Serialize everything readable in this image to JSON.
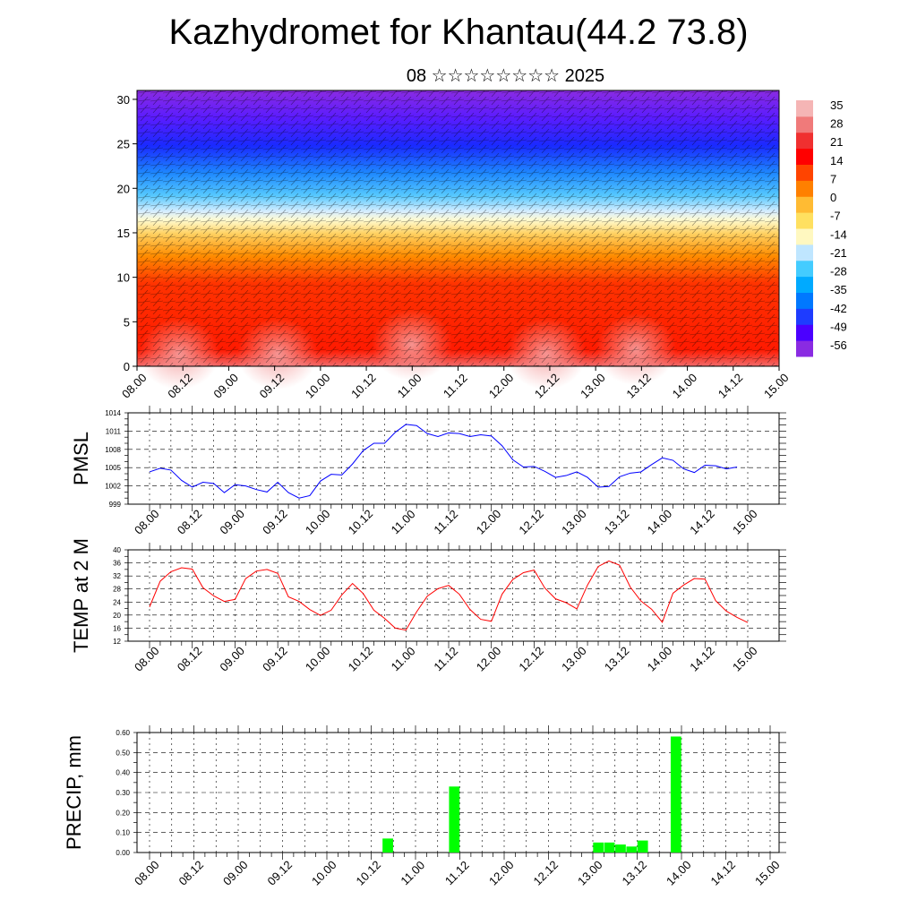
{
  "title": "Kazhydromet for Khantau(44.2 73.8)",
  "subtitle": "08 ☆☆☆☆☆☆☆☆ 2025",
  "colors": {
    "pmsl_line": "#0000ff",
    "temp_line": "#ff0000",
    "precip_bar": "#00ff00",
    "colorbar": [
      "#8a2be2",
      "#4b00ff",
      "#1e3cff",
      "#0078ff",
      "#00aaff",
      "#44ccff",
      "#bfe6ff",
      "#fff8c0",
      "#ffe060",
      "#ffbb33",
      "#ff8000",
      "#ff4400",
      "#ff0000",
      "#f03030",
      "#f07a7a",
      "#f5b5b5"
    ]
  },
  "chart_data": [
    {
      "type": "heatmap",
      "name": "cross-section",
      "x_ticks": [
        "08.00",
        "08.12",
        "09.00",
        "09.12",
        "10.00",
        "10.12",
        "11.00",
        "11.12",
        "12.00",
        "12.12",
        "13.00",
        "13.12",
        "14.00",
        "14.12",
        "15.00"
      ],
      "y_ticks": [
        "0",
        "5",
        "10",
        "15",
        "20",
        "25",
        "30"
      ],
      "ylim": [
        0,
        31
      ],
      "colorbar_labels": [
        "35",
        "28",
        "21",
        "14",
        "7",
        "0",
        "-7",
        "-14",
        "-21",
        "-28",
        "-35",
        "-42",
        "-49",
        "-56"
      ]
    },
    {
      "type": "line",
      "ylabel": "PMSL",
      "x_ticks": [
        "08.00",
        "08.12",
        "09.00",
        "09.12",
        "10.00",
        "10.12",
        "11.00",
        "11.12",
        "12.00",
        "12.12",
        "13.00",
        "13.12",
        "14.00",
        "14.12",
        "15.00"
      ],
      "y_ticks": [
        "999",
        "1002",
        "1005",
        "1008",
        "1011",
        "1014"
      ],
      "ylim": [
        999,
        1014
      ],
      "values": [
        1004.3,
        1004.9,
        1004.6,
        1002.9,
        1001.8,
        1002.6,
        1002.4,
        1000.9,
        1002.2,
        1002.0,
        1001.4,
        1001.0,
        1002.6,
        1000.9,
        1000.0,
        1000.4,
        1002.8,
        1003.9,
        1003.8,
        1005.6,
        1007.8,
        1009.0,
        1009.0,
        1010.8,
        1012.1,
        1011.9,
        1010.6,
        1010.1,
        1010.7,
        1010.6,
        1010.1,
        1010.4,
        1010.2,
        1008.6,
        1006.3,
        1005.1,
        1005.2,
        1004.4,
        1003.4,
        1003.7,
        1004.3,
        1003.4,
        1001.8,
        1001.9,
        1003.5,
        1004.1,
        1004.3,
        1005.5,
        1006.6,
        1006.2,
        1004.8,
        1004.2,
        1005.4,
        1005.3,
        1004.8,
        1005.1
      ],
      "grid": true
    },
    {
      "type": "line",
      "ylabel": "TEMP at 2 M",
      "x_ticks": [
        "08.00",
        "08.12",
        "09.00",
        "09.12",
        "10.00",
        "10.12",
        "11.00",
        "11.12",
        "12.00",
        "12.12",
        "13.00",
        "13.12",
        "14.00",
        "14.12",
        "15.00"
      ],
      "y_ticks": [
        "12",
        "16",
        "20",
        "24",
        "28",
        "32",
        "36",
        "40"
      ],
      "ylim": [
        12,
        40
      ],
      "values": [
        22.5,
        30.4,
        33.3,
        34.5,
        34.1,
        28.4,
        25.9,
        24.2,
        24.8,
        31.2,
        33.5,
        34.0,
        32.8,
        25.6,
        24.2,
        21.7,
        19.9,
        21.5,
        26.2,
        29.7,
        26.6,
        21.5,
        19.0,
        16.0,
        15.4,
        21.0,
        25.8,
        28.1,
        29.1,
        26.4,
        21.7,
        18.7,
        18.1,
        26.4,
        30.9,
        33.0,
        33.8,
        28.3,
        25.0,
        23.8,
        21.9,
        29.2,
        34.9,
        36.6,
        35.3,
        28.6,
        24.3,
        21.8,
        17.8,
        26.7,
        29.2,
        31.2,
        31.0,
        24.4,
        21.2,
        19.3,
        17.7
      ],
      "grid": true
    },
    {
      "type": "bar",
      "ylabel": "PRECIP, mm",
      "x_ticks": [
        "08.00",
        "08.12",
        "09.00",
        "09.12",
        "10.00",
        "10.12",
        "11.00",
        "11.12",
        "12.00",
        "12.12",
        "13.00",
        "13.12",
        "14.00",
        "14.12",
        "15.00"
      ],
      "y_ticks": [
        "0.00",
        "0.10",
        "0.20",
        "0.30",
        "0.40",
        "0.50",
        "0.60"
      ],
      "ylim": [
        0,
        0.6
      ],
      "bars": [
        {
          "x_step": 21.5,
          "value": 0.07
        },
        {
          "x_step": 27.5,
          "value": 0.33
        },
        {
          "x_step": 40.5,
          "value": 0.05
        },
        {
          "x_step": 41.5,
          "value": 0.05
        },
        {
          "x_step": 42.5,
          "value": 0.04
        },
        {
          "x_step": 43.5,
          "value": 0.03
        },
        {
          "x_step": 44.5,
          "value": 0.06
        },
        {
          "x_step": 47.5,
          "value": 0.58
        }
      ],
      "grid": true
    }
  ]
}
